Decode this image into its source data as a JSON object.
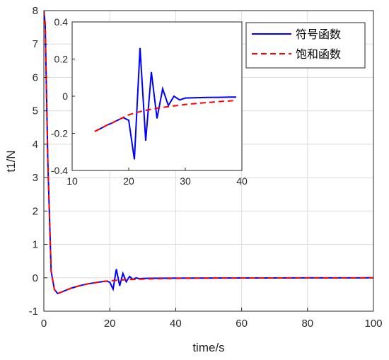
{
  "chart_data": {
    "type": "line",
    "xlabel": "time/s",
    "ylabel": "t1/N",
    "xlim": [
      0,
      100
    ],
    "ylim": [
      -1,
      8
    ],
    "xticks": [
      "0",
      "20",
      "40",
      "60",
      "80",
      "100"
    ],
    "yticks": [
      "-1",
      "0",
      "1",
      "2",
      "3",
      "4",
      "5",
      "6",
      "7",
      "8"
    ],
    "grid": true,
    "legend": {
      "position": "top-right"
    },
    "colors": {
      "sign": "#0000ff",
      "sat": "#ff0000"
    },
    "series": [
      {
        "name": "符号函数",
        "style": "solid",
        "x": [
          0,
          0.4,
          1.2,
          2.2,
          3.2,
          4.2,
          5,
          6,
          7,
          8,
          9,
          10,
          12,
          14,
          16,
          18,
          19,
          20,
          21,
          22,
          23,
          24,
          25,
          26,
          27,
          28,
          29,
          30,
          32,
          35,
          40,
          50,
          60,
          80,
          100
        ],
        "y": [
          8,
          7.6,
          3.5,
          0.2,
          -0.35,
          -0.47,
          -0.44,
          -0.4,
          -0.36,
          -0.32,
          -0.29,
          -0.26,
          -0.21,
          -0.17,
          -0.14,
          -0.11,
          -0.1,
          -0.13,
          -0.34,
          0.26,
          -0.24,
          0.13,
          -0.12,
          0.04,
          -0.05,
          0,
          -0.03,
          -0.02,
          -0.015,
          -0.014,
          -0.01,
          -0.006,
          -0.004,
          -0.002,
          -0.001
        ]
      },
      {
        "name": "饱和函数",
        "style": "dashed",
        "x": [
          0,
          0.4,
          1.2,
          2.2,
          3.2,
          4.2,
          5,
          6,
          7,
          8,
          9,
          10,
          12,
          14,
          16,
          18,
          20,
          22,
          24,
          26,
          28,
          30,
          32,
          35,
          40,
          45,
          50,
          60,
          80,
          100
        ],
        "y": [
          8,
          7.6,
          3.5,
          0.2,
          -0.35,
          -0.47,
          -0.44,
          -0.4,
          -0.36,
          -0.32,
          -0.29,
          -0.26,
          -0.21,
          -0.17,
          -0.14,
          -0.11,
          -0.09,
          -0.075,
          -0.063,
          -0.053,
          -0.045,
          -0.038,
          -0.032,
          -0.025,
          -0.017,
          -0.012,
          -0.008,
          -0.004,
          -0.002,
          -0.001
        ]
      }
    ],
    "inset": {
      "xlim": [
        10,
        40
      ],
      "ylim": [
        -0.4,
        0.4
      ],
      "xticks": [
        "10",
        "20",
        "30",
        "40"
      ],
      "yticks": [
        "0.4",
        "0.2",
        "0",
        "-0.2",
        "-0.4"
      ],
      "grid": false,
      "series": [
        {
          "name": "符号函数",
          "x": [
            14,
            15,
            16,
            17,
            18,
            19,
            20,
            21,
            22,
            23,
            24,
            25,
            26,
            27,
            28,
            29,
            30,
            32,
            34,
            36,
            38,
            39
          ],
          "y": [
            -0.19,
            -0.175,
            -0.158,
            -0.145,
            -0.13,
            -0.115,
            -0.13,
            -0.34,
            0.26,
            -0.24,
            0.13,
            -0.12,
            0.04,
            -0.05,
            0,
            -0.02,
            -0.01,
            -0.008,
            -0.007,
            -0.006,
            -0.005,
            -0.005
          ]
        },
        {
          "name": "饱和函数",
          "x": [
            14,
            15,
            16,
            17,
            18,
            19,
            20,
            22,
            24,
            26,
            28,
            30,
            32,
            34,
            36,
            38,
            39
          ],
          "y": [
            -0.19,
            -0.175,
            -0.158,
            -0.145,
            -0.13,
            -0.115,
            -0.1,
            -0.083,
            -0.07,
            -0.06,
            -0.052,
            -0.045,
            -0.039,
            -0.034,
            -0.029,
            -0.025,
            -0.023
          ]
        }
      ]
    }
  }
}
